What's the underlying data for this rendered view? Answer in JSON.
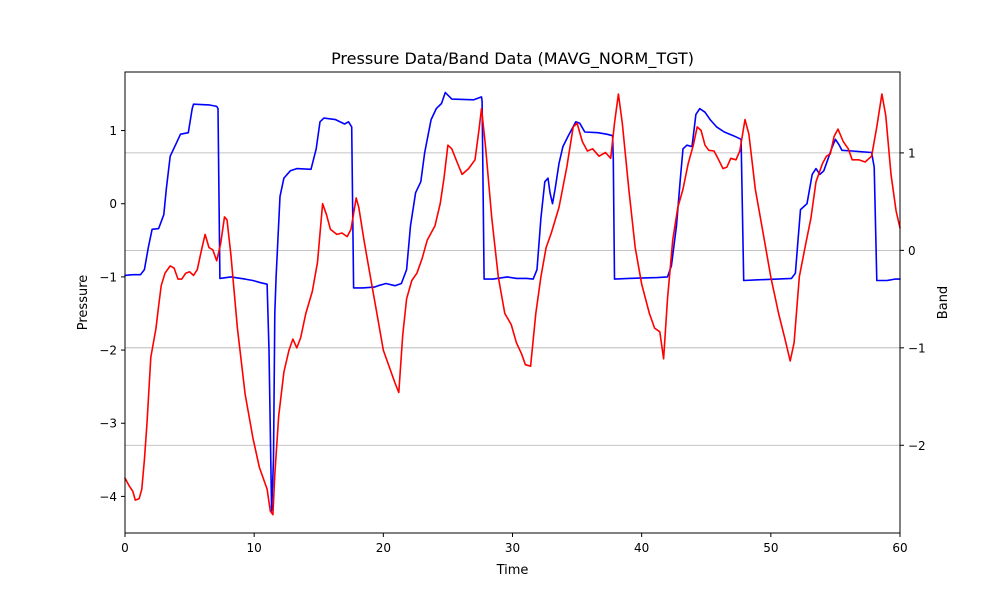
{
  "chart_data": {
    "type": "line",
    "title": "Pressure Data/Band Data (MAVG_NORM_TGT)",
    "xlabel": "Time",
    "ylabel": "Pressure",
    "y2label": "Band",
    "xlim": [
      0,
      60
    ],
    "ylim": [
      -4.5,
      1.8
    ],
    "y2lim": [
      -2.9,
      1.83
    ],
    "xticks": [
      "0",
      "10",
      "20",
      "30",
      "40",
      "50",
      "60"
    ],
    "yticks": [
      "−4",
      "−3",
      "−2",
      "−1",
      "0",
      "1"
    ],
    "y2ticks": [
      "−2",
      "−1",
      "0",
      "1"
    ],
    "grid": "right-axis horizontal",
    "colors": {
      "pressure": "#0000ff",
      "band": "#ff0000",
      "grid": "#b0b0b0"
    },
    "series": [
      {
        "axis": "left",
        "color": "#0000ff",
        "points": [
          [
            0,
            -0.98
          ],
          [
            0.6,
            -0.97
          ],
          [
            1.2,
            -0.97
          ],
          [
            1.5,
            -0.9
          ],
          [
            1.8,
            -0.6
          ],
          [
            2.1,
            -0.35
          ],
          [
            2.6,
            -0.34
          ],
          [
            3.0,
            -0.15
          ],
          [
            3.2,
            0.2
          ],
          [
            3.5,
            0.65
          ],
          [
            3.9,
            0.8
          ],
          [
            4.3,
            0.95
          ],
          [
            4.9,
            0.97
          ],
          [
            5.2,
            1.3
          ],
          [
            5.3,
            1.36
          ],
          [
            6.5,
            1.35
          ],
          [
            7.1,
            1.33
          ],
          [
            7.2,
            1.3
          ],
          [
            7.35,
            -1.02
          ],
          [
            8.2,
            -1.0
          ],
          [
            9.3,
            -1.03
          ],
          [
            9.9,
            -1.05
          ],
          [
            10.5,
            -1.08
          ],
          [
            11.0,
            -1.1
          ],
          [
            11.15,
            -2.0
          ],
          [
            11.35,
            -4.2
          ],
          [
            11.5,
            -3.5
          ],
          [
            11.6,
            -1.5
          ],
          [
            11.7,
            -1.0
          ],
          [
            12.0,
            0.1
          ],
          [
            12.3,
            0.35
          ],
          [
            12.8,
            0.45
          ],
          [
            13.3,
            0.48
          ],
          [
            14.4,
            0.47
          ],
          [
            14.8,
            0.75
          ],
          [
            15.1,
            1.12
          ],
          [
            15.4,
            1.17
          ],
          [
            16.3,
            1.15
          ],
          [
            17.0,
            1.09
          ],
          [
            17.3,
            1.12
          ],
          [
            17.55,
            1.05
          ],
          [
            17.7,
            -1.15
          ],
          [
            18.4,
            -1.15
          ],
          [
            19.3,
            -1.14
          ],
          [
            19.6,
            -1.12
          ],
          [
            20.2,
            -1.09
          ],
          [
            20.9,
            -1.12
          ],
          [
            21.4,
            -1.09
          ],
          [
            21.8,
            -0.9
          ],
          [
            22.1,
            -0.3
          ],
          [
            22.5,
            0.15
          ],
          [
            22.9,
            0.3
          ],
          [
            23.2,
            0.7
          ],
          [
            23.7,
            1.15
          ],
          [
            24.1,
            1.3
          ],
          [
            24.5,
            1.37
          ],
          [
            24.8,
            1.52
          ],
          [
            25.3,
            1.43
          ],
          [
            27.0,
            1.42
          ],
          [
            27.6,
            1.46
          ],
          [
            27.65,
            1.4
          ],
          [
            27.8,
            -1.03
          ],
          [
            28.5,
            -1.03
          ],
          [
            29.6,
            -1.0
          ],
          [
            30.3,
            -1.02
          ],
          [
            31.1,
            -1.02
          ],
          [
            31.6,
            -1.03
          ],
          [
            31.9,
            -0.9
          ],
          [
            32.2,
            -0.2
          ],
          [
            32.5,
            0.3
          ],
          [
            32.75,
            0.35
          ],
          [
            32.9,
            0.15
          ],
          [
            33.1,
            0.0
          ],
          [
            33.3,
            0.2
          ],
          [
            33.6,
            0.55
          ],
          [
            33.9,
            0.78
          ],
          [
            34.3,
            0.92
          ],
          [
            34.9,
            1.12
          ],
          [
            35.2,
            1.1
          ],
          [
            35.6,
            0.98
          ],
          [
            36.6,
            0.97
          ],
          [
            37.3,
            0.95
          ],
          [
            37.75,
            0.93
          ],
          [
            37.8,
            0.6
          ],
          [
            37.9,
            -1.03
          ],
          [
            39.0,
            -1.02
          ],
          [
            41.2,
            -1.01
          ],
          [
            42.0,
            -1.0
          ],
          [
            42.3,
            -0.85
          ],
          [
            42.7,
            -0.3
          ],
          [
            43.0,
            0.35
          ],
          [
            43.2,
            0.75
          ],
          [
            43.5,
            0.8
          ],
          [
            43.9,
            0.78
          ],
          [
            44.2,
            1.22
          ],
          [
            44.5,
            1.3
          ],
          [
            44.9,
            1.25
          ],
          [
            45.3,
            1.15
          ],
          [
            45.8,
            1.05
          ],
          [
            46.4,
            0.98
          ],
          [
            47.1,
            0.93
          ],
          [
            47.7,
            0.88
          ],
          [
            47.9,
            -1.05
          ],
          [
            49.0,
            -1.04
          ],
          [
            50.5,
            -1.03
          ],
          [
            51.6,
            -1.02
          ],
          [
            51.9,
            -0.95
          ],
          [
            52.1,
            -0.5
          ],
          [
            52.3,
            -0.08
          ],
          [
            52.8,
            0.0
          ],
          [
            53.2,
            0.4
          ],
          [
            53.5,
            0.48
          ],
          [
            53.8,
            0.4
          ],
          [
            54.1,
            0.45
          ],
          [
            54.4,
            0.6
          ],
          [
            54.7,
            0.75
          ],
          [
            55.0,
            0.88
          ],
          [
            55.3,
            0.8
          ],
          [
            55.5,
            0.73
          ],
          [
            56.3,
            0.72
          ],
          [
            57.8,
            0.7
          ],
          [
            58.0,
            0.5
          ],
          [
            58.2,
            -1.05
          ],
          [
            59.0,
            -1.05
          ],
          [
            59.6,
            -1.03
          ],
          [
            60,
            -1.03
          ]
        ]
      },
      {
        "axis": "left",
        "color": "#ff0000",
        "points": [
          [
            0,
            -3.75
          ],
          [
            0.3,
            -3.85
          ],
          [
            0.6,
            -3.93
          ],
          [
            0.8,
            -4.05
          ],
          [
            1.1,
            -4.03
          ],
          [
            1.3,
            -3.9
          ],
          [
            1.5,
            -3.5
          ],
          [
            1.7,
            -3.0
          ],
          [
            2.0,
            -2.1
          ],
          [
            2.4,
            -1.7
          ],
          [
            2.6,
            -1.4
          ],
          [
            2.8,
            -1.12
          ],
          [
            3.1,
            -0.95
          ],
          [
            3.5,
            -0.85
          ],
          [
            3.8,
            -0.88
          ],
          [
            4.1,
            -1.03
          ],
          [
            4.4,
            -1.03
          ],
          [
            4.7,
            -0.95
          ],
          [
            5.0,
            -0.93
          ],
          [
            5.3,
            -0.98
          ],
          [
            5.6,
            -0.9
          ],
          [
            5.9,
            -0.65
          ],
          [
            6.2,
            -0.42
          ],
          [
            6.5,
            -0.6
          ],
          [
            6.8,
            -0.63
          ],
          [
            7.1,
            -0.78
          ],
          [
            7.4,
            -0.55
          ],
          [
            7.7,
            -0.18
          ],
          [
            7.9,
            -0.22
          ],
          [
            8.2,
            -0.7
          ],
          [
            8.7,
            -1.7
          ],
          [
            9.3,
            -2.6
          ],
          [
            9.9,
            -3.2
          ],
          [
            10.4,
            -3.6
          ],
          [
            11.0,
            -3.9
          ],
          [
            11.25,
            -4.2
          ],
          [
            11.45,
            -4.25
          ],
          [
            11.6,
            -3.7
          ],
          [
            11.9,
            -2.9
          ],
          [
            12.3,
            -2.3
          ],
          [
            12.7,
            -2.0
          ],
          [
            13.0,
            -1.85
          ],
          [
            13.3,
            -1.97
          ],
          [
            13.6,
            -1.83
          ],
          [
            14.0,
            -1.5
          ],
          [
            14.5,
            -1.2
          ],
          [
            14.9,
            -0.8
          ],
          [
            15.3,
            0.0
          ],
          [
            15.6,
            -0.15
          ],
          [
            15.9,
            -0.35
          ],
          [
            16.4,
            -0.42
          ],
          [
            16.8,
            -0.4
          ],
          [
            17.2,
            -0.45
          ],
          [
            17.5,
            -0.35
          ],
          [
            17.9,
            0.08
          ],
          [
            18.1,
            -0.05
          ],
          [
            18.5,
            -0.5
          ],
          [
            19.0,
            -1.0
          ],
          [
            19.5,
            -1.5
          ],
          [
            20.0,
            -2.0
          ],
          [
            20.5,
            -2.25
          ],
          [
            20.9,
            -2.45
          ],
          [
            21.2,
            -2.58
          ],
          [
            21.5,
            -1.8
          ],
          [
            21.8,
            -1.3
          ],
          [
            22.2,
            -1.05
          ],
          [
            22.6,
            -0.95
          ],
          [
            23.0,
            -0.75
          ],
          [
            23.4,
            -0.5
          ],
          [
            24.0,
            -0.3
          ],
          [
            24.4,
            0.0
          ],
          [
            24.7,
            0.35
          ],
          [
            25.0,
            0.8
          ],
          [
            25.3,
            0.75
          ],
          [
            25.7,
            0.57
          ],
          [
            26.1,
            0.4
          ],
          [
            26.6,
            0.48
          ],
          [
            27.1,
            0.6
          ],
          [
            27.4,
            1.0
          ],
          [
            27.6,
            1.3
          ],
          [
            27.9,
            0.8
          ],
          [
            28.4,
            -0.2
          ],
          [
            28.9,
            -1.0
          ],
          [
            29.4,
            -1.5
          ],
          [
            29.9,
            -1.65
          ],
          [
            30.3,
            -1.9
          ],
          [
            30.7,
            -2.05
          ],
          [
            31.0,
            -2.2
          ],
          [
            31.4,
            -2.22
          ],
          [
            31.8,
            -1.5
          ],
          [
            32.2,
            -1.0
          ],
          [
            32.6,
            -0.6
          ],
          [
            33.0,
            -0.4
          ],
          [
            33.6,
            -0.05
          ],
          [
            34.2,
            0.5
          ],
          [
            34.7,
            1.05
          ],
          [
            35.0,
            1.1
          ],
          [
            35.4,
            0.85
          ],
          [
            35.8,
            0.72
          ],
          [
            36.2,
            0.75
          ],
          [
            36.7,
            0.65
          ],
          [
            37.2,
            0.7
          ],
          [
            37.6,
            0.62
          ],
          [
            37.9,
            1.1
          ],
          [
            38.2,
            1.5
          ],
          [
            38.5,
            1.1
          ],
          [
            39.0,
            0.2
          ],
          [
            39.5,
            -0.6
          ],
          [
            40.0,
            -1.1
          ],
          [
            40.6,
            -1.5
          ],
          [
            41.0,
            -1.7
          ],
          [
            41.4,
            -1.75
          ],
          [
            41.7,
            -2.12
          ],
          [
            42.0,
            -1.3
          ],
          [
            42.4,
            -0.5
          ],
          [
            42.8,
            -0.05
          ],
          [
            43.2,
            0.2
          ],
          [
            43.6,
            0.55
          ],
          [
            44.0,
            0.8
          ],
          [
            44.3,
            1.05
          ],
          [
            44.6,
            1.0
          ],
          [
            44.9,
            0.8
          ],
          [
            45.2,
            0.73
          ],
          [
            45.6,
            0.72
          ],
          [
            45.9,
            0.62
          ],
          [
            46.3,
            0.48
          ],
          [
            46.6,
            0.5
          ],
          [
            46.9,
            0.62
          ],
          [
            47.3,
            0.6
          ],
          [
            47.6,
            0.72
          ],
          [
            48.0,
            1.15
          ],
          [
            48.3,
            0.95
          ],
          [
            48.8,
            0.2
          ],
          [
            49.4,
            -0.4
          ],
          [
            50.0,
            -1.0
          ],
          [
            50.6,
            -1.5
          ],
          [
            51.1,
            -1.85
          ],
          [
            51.5,
            -2.15
          ],
          [
            51.8,
            -1.9
          ],
          [
            52.2,
            -1.0
          ],
          [
            52.7,
            -0.55
          ],
          [
            53.1,
            -0.2
          ],
          [
            53.5,
            0.3
          ],
          [
            54.0,
            0.55
          ],
          [
            54.3,
            0.65
          ],
          [
            54.6,
            0.68
          ],
          [
            54.9,
            0.92
          ],
          [
            55.2,
            1.02
          ],
          [
            55.6,
            0.85
          ],
          [
            56.0,
            0.75
          ],
          [
            56.3,
            0.6
          ],
          [
            56.8,
            0.6
          ],
          [
            57.3,
            0.57
          ],
          [
            57.8,
            0.65
          ],
          [
            58.2,
            1.05
          ],
          [
            58.6,
            1.5
          ],
          [
            58.9,
            1.2
          ],
          [
            59.3,
            0.4
          ],
          [
            59.7,
            -0.1
          ],
          [
            60,
            -0.33
          ]
        ]
      }
    ]
  }
}
